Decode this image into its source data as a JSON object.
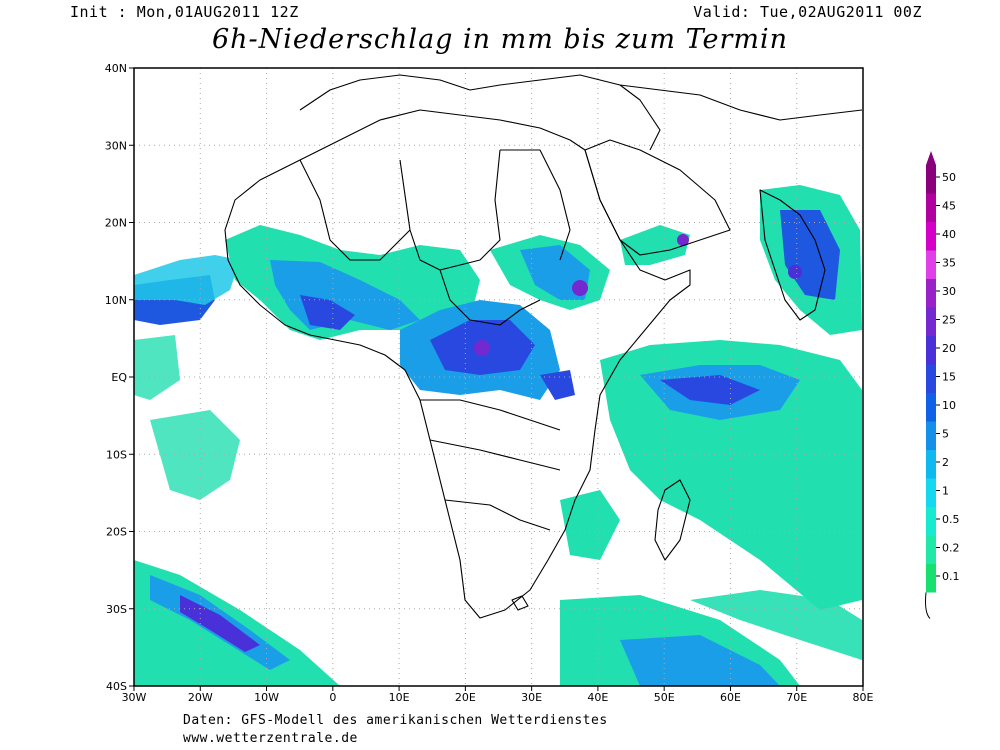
{
  "header": {
    "init": "Init : Mon,01AUG2011 12Z",
    "valid": "Valid: Tue,02AUG2011 00Z",
    "title": "6h-Niederschlag in mm bis zum Termin"
  },
  "axes": {
    "lat_labels": [
      "40N",
      "30N",
      "20N",
      "10N",
      "EQ",
      "10S",
      "20S",
      "30S",
      "40S"
    ],
    "lat_values": [
      40,
      30,
      20,
      10,
      0,
      -10,
      -20,
      -30,
      -40
    ],
    "lon_labels": [
      "30W",
      "20W",
      "10W",
      "0",
      "10E",
      "20E",
      "30E",
      "40E",
      "50E",
      "60E",
      "70E",
      "80E"
    ],
    "lon_values": [
      -30,
      -20,
      -10,
      0,
      10,
      20,
      30,
      40,
      50,
      60,
      70,
      80
    ]
  },
  "legend": {
    "levels": [
      "50",
      "45",
      "40",
      "35",
      "30",
      "25",
      "20",
      "15",
      "10",
      "5",
      "2",
      "1",
      "0.5",
      "0.2",
      "0.1"
    ],
    "colors": [
      "#8a007a",
      "#b0009e",
      "#d400c8",
      "#e040e8",
      "#9a20c8",
      "#7428d0",
      "#4a30d8",
      "#2848e0",
      "#1060e8",
      "#1490e8",
      "#10b8f0",
      "#14d8f0",
      "#18ead0",
      "#20e8a8",
      "#18e070"
    ]
  },
  "footer": {
    "credit": "Daten: GFS-Modell des amerikanischen Wetterdienstes",
    "site": "www.wetterzentrale.de"
  }
}
